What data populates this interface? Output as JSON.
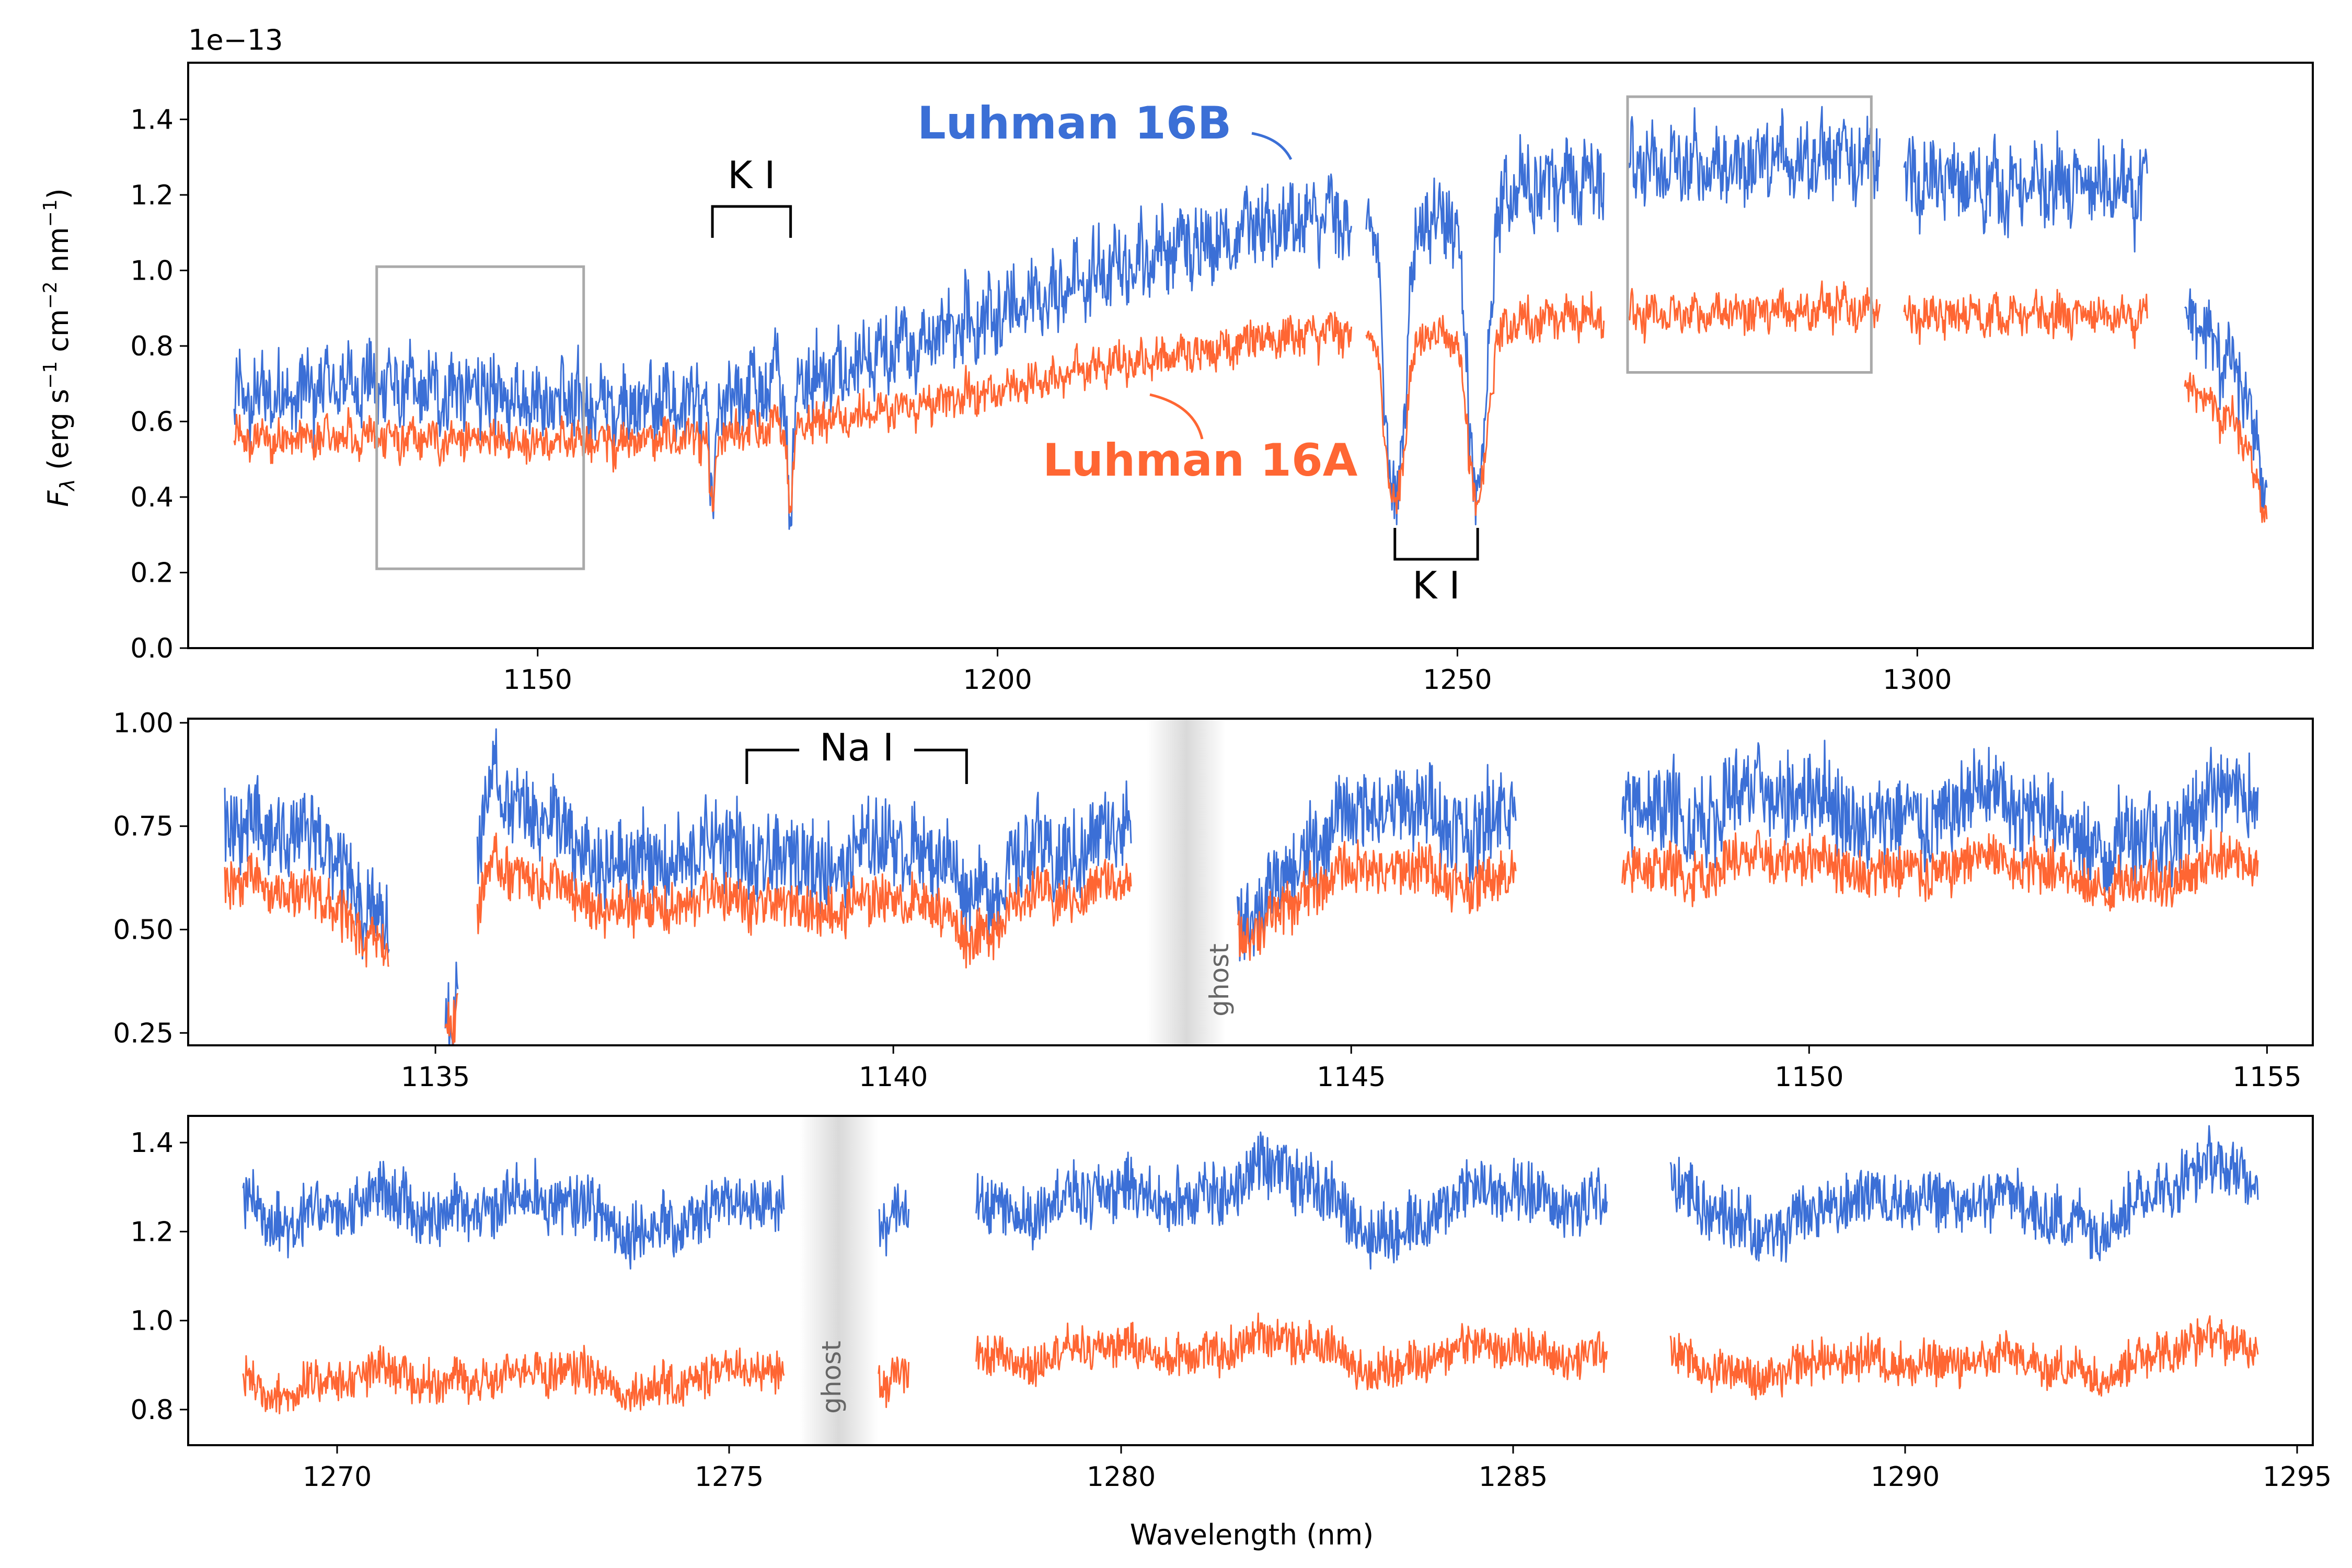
{
  "chart_data": [
    {
      "id": "top",
      "type": "line",
      "xlabel": "",
      "ylabel": "F_λ (erg s⁻¹ cm⁻² nm⁻¹)",
      "offset_text": "1e−13",
      "xlim": [
        1112,
        1343
      ],
      "ylim": [
        0.0,
        1.55
      ],
      "xticks": [
        1150,
        1200,
        1250,
        1300
      ],
      "yticks": [
        0.0,
        0.2,
        0.4,
        0.6,
        0.8,
        1.0,
        1.2,
        1.4
      ],
      "ytick_labels": [
        "0.0",
        "0.2",
        "0.4",
        "0.6",
        "0.8",
        "1.0",
        "1.2",
        "1.4"
      ],
      "gaps": [
        [
          1238.5,
          1240.0
        ],
        [
          1266.0,
          1268.5
        ],
        [
          1296.0,
          1298.5
        ],
        [
          1325.0,
          1329.0
        ]
      ],
      "series": [
        {
          "name": "Luhman 16B",
          "color": "#3b6fd6",
          "x": [
            1117,
            1130,
            1140,
            1150,
            1160,
            1170,
            1180,
            1190,
            1200,
            1210,
            1220,
            1230,
            1238,
            1244,
            1248,
            1252,
            1256,
            1262,
            1270,
            1280,
            1290,
            1295,
            1300,
            1310,
            1320,
            1325,
            1329,
            1335,
            1338
          ],
          "y": [
            0.65,
            0.7,
            0.68,
            0.66,
            0.64,
            0.66,
            0.72,
            0.8,
            0.88,
            0.98,
            1.07,
            1.12,
            1.14,
            1.1,
            1.16,
            1.12,
            1.22,
            1.24,
            1.27,
            1.28,
            1.3,
            1.3,
            1.24,
            1.22,
            1.22,
            1.2,
            0.9,
            0.72,
            0.42
          ],
          "noise": 0.14
        },
        {
          "name": "Luhman 16A",
          "color": "#ff6633",
          "x": [
            1117,
            1130,
            1140,
            1150,
            1160,
            1170,
            1180,
            1190,
            1200,
            1210,
            1220,
            1230,
            1238,
            1244,
            1248,
            1252,
            1256,
            1262,
            1270,
            1280,
            1290,
            1295,
            1300,
            1310,
            1320,
            1325,
            1329,
            1335,
            1338
          ],
          "y": [
            0.55,
            0.56,
            0.55,
            0.55,
            0.55,
            0.56,
            0.6,
            0.64,
            0.68,
            0.74,
            0.78,
            0.82,
            0.84,
            0.82,
            0.84,
            0.82,
            0.86,
            0.88,
            0.88,
            0.89,
            0.9,
            0.9,
            0.88,
            0.88,
            0.88,
            0.86,
            0.7,
            0.58,
            0.35
          ],
          "noise": 0.07
        }
      ],
      "absorption_dips": [
        {
          "x": 1169.0,
          "width": 0.4,
          "depth": 0.35
        },
        {
          "x": 1177.5,
          "width": 0.4,
          "depth": 0.35
        },
        {
          "x": 1243.2,
          "width": 1.4,
          "depth": 0.75
        },
        {
          "x": 1252.2,
          "width": 1.4,
          "depth": 0.75
        }
      ],
      "annotations": [
        {
          "text": "K I",
          "type": "bracket",
          "x_start": 1169.0,
          "x_end": 1177.5,
          "position": "above"
        },
        {
          "text": "K I",
          "type": "bracket",
          "x_start": 1243.2,
          "x_end": 1252.2,
          "position": "below"
        },
        {
          "text": "Luhman 16B",
          "color": "#3b6fd6",
          "position": "above-spectrum"
        },
        {
          "text": "Luhman 16A",
          "color": "#ff6633",
          "position": "below-spectrum"
        }
      ],
      "inset_regions": [
        {
          "x": [
            1132.5,
            1155
          ],
          "y": [
            0.21,
            1.01
          ]
        },
        {
          "x": [
            1268.5,
            1295
          ],
          "y": [
            0.73,
            1.46
          ]
        }
      ]
    },
    {
      "id": "middle",
      "type": "line",
      "xlabel": "",
      "ylabel": "",
      "xlim": [
        1132.3,
        1155.5
      ],
      "ylim": [
        0.22,
        1.01
      ],
      "xticks": [
        1135,
        1140,
        1145,
        1150,
        1155
      ],
      "yticks": [
        0.25,
        0.5,
        0.75,
        1.0
      ],
      "ytick_labels": [
        "0.25",
        "0.50",
        "0.75",
        "1.00"
      ],
      "gaps": [
        [
          1134.5,
          1135.1
        ],
        [
          1135.25,
          1135.45
        ],
        [
          1142.6,
          1143.75
        ],
        [
          1146.8,
          1147.95
        ]
      ],
      "ghost_band": {
        "x": 1143.2,
        "label": "ghost"
      },
      "series": [
        {
          "name": "Luhman 16B",
          "color": "#3b6fd6",
          "x": [
            1132.7,
            1133.5,
            1134.4,
            1135.2,
            1135.6,
            1136.5,
            1137.5,
            1138.5,
            1139.5,
            1140.3,
            1140.8,
            1141.5,
            1142.5,
            1143.9,
            1144.5,
            1145.5,
            1146.5,
            1148.0,
            1149.0,
            1150.0,
            1151.0,
            1152.0,
            1153.0,
            1154.0,
            1154.9
          ],
          "y": [
            0.75,
            0.7,
            0.55,
            0.32,
            0.82,
            0.7,
            0.68,
            0.65,
            0.72,
            0.68,
            0.55,
            0.72,
            0.72,
            0.55,
            0.7,
            0.78,
            0.8,
            0.8,
            0.82,
            0.78,
            0.8,
            0.78,
            0.75,
            0.74,
            0.82
          ],
          "noise": 0.16
        },
        {
          "name": "Luhman 16A",
          "color": "#ff6633",
          "x": [
            1132.7,
            1133.5,
            1134.4,
            1135.2,
            1135.6,
            1136.5,
            1137.5,
            1138.5,
            1139.5,
            1140.3,
            1140.8,
            1141.5,
            1142.5,
            1143.9,
            1144.5,
            1145.5,
            1146.5,
            1148.0,
            1149.0,
            1150.0,
            1151.0,
            1152.0,
            1153.0,
            1154.0,
            1154.9
          ],
          "y": [
            0.62,
            0.57,
            0.48,
            0.3,
            0.64,
            0.58,
            0.56,
            0.55,
            0.58,
            0.56,
            0.46,
            0.6,
            0.6,
            0.5,
            0.6,
            0.64,
            0.64,
            0.65,
            0.66,
            0.65,
            0.66,
            0.65,
            0.63,
            0.62,
            0.66
          ],
          "noise": 0.09
        }
      ],
      "annotations": [
        {
          "text": "Na I",
          "type": "bracket",
          "x_start": 1138.4,
          "x_end": 1140.8,
          "position": "above"
        }
      ]
    },
    {
      "id": "bottom",
      "type": "line",
      "xlabel": "Wavelength (nm)",
      "ylabel": "",
      "xlim": [
        1268.1,
        1295.2
      ],
      "ylim": [
        0.72,
        1.46
      ],
      "xticks": [
        1270,
        1275,
        1280,
        1285,
        1290,
        1295
      ],
      "yticks": [
        0.8,
        1.0,
        1.2,
        1.4
      ],
      "ytick_labels": [
        "0.8",
        "1.0",
        "1.2",
        "1.4"
      ],
      "gaps": [
        [
          1275.7,
          1276.9
        ],
        [
          1277.3,
          1278.15
        ],
        [
          1286.2,
          1287.0
        ]
      ],
      "ghost_band": {
        "x": 1276.4,
        "label": "ghost"
      },
      "series": [
        {
          "name": "Luhman 16B",
          "color": "#3b6fd6",
          "x": [
            1268.8,
            1270.0,
            1272.0,
            1274.0,
            1275.6,
            1277.0,
            1278.2,
            1280.0,
            1282.0,
            1283.5,
            1285.0,
            1286.2,
            1287.0,
            1288.5,
            1290.0,
            1292.0,
            1293.5,
            1294.5
          ],
          "y": [
            1.27,
            1.24,
            1.27,
            1.22,
            1.25,
            1.22,
            1.26,
            1.27,
            1.33,
            1.2,
            1.3,
            1.27,
            1.3,
            1.2,
            1.3,
            1.22,
            1.3,
            1.35
          ],
          "noise": 0.1
        },
        {
          "name": "Luhman 16A",
          "color": "#ff6633",
          "x": [
            1268.8,
            1270.0,
            1272.0,
            1274.0,
            1275.6,
            1277.0,
            1278.2,
            1280.0,
            1282.0,
            1283.5,
            1285.0,
            1286.2,
            1287.0,
            1288.5,
            1290.0,
            1292.0,
            1293.5,
            1294.5
          ],
          "y": [
            0.86,
            0.86,
            0.88,
            0.86,
            0.88,
            0.86,
            0.92,
            0.93,
            0.95,
            0.9,
            0.94,
            0.93,
            0.92,
            0.88,
            0.92,
            0.89,
            0.93,
            0.96
          ],
          "noise": 0.07
        }
      ]
    }
  ]
}
